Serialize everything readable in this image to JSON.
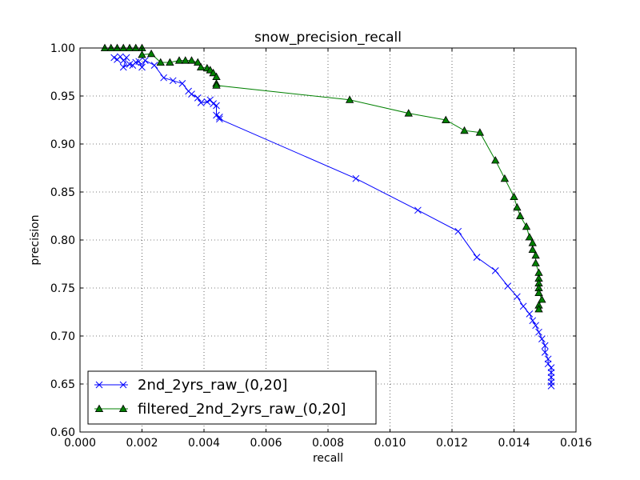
{
  "chart_data": {
    "type": "line",
    "title": "snow_precision_recall",
    "xlabel": "recall",
    "ylabel": "precision",
    "xlim": [
      0.0,
      0.016
    ],
    "ylim": [
      0.6,
      1.0
    ],
    "grid": true,
    "legend_position": "lower-left",
    "x_ticks": [
      "0.000",
      "0.002",
      "0.004",
      "0.006",
      "0.008",
      "0.010",
      "0.012",
      "0.014",
      "0.016"
    ],
    "y_ticks": [
      "0.60",
      "0.65",
      "0.70",
      "0.75",
      "0.80",
      "0.85",
      "0.90",
      "0.95",
      "1.00"
    ],
    "series": [
      {
        "name": "2nd_2yrs_raw_(0,20]",
        "color": "#0000ff",
        "marker": "x",
        "points": [
          [
            0.0011,
            0.99
          ],
          [
            0.0012,
            0.988
          ],
          [
            0.0013,
            0.991
          ],
          [
            0.0014,
            0.987
          ],
          [
            0.0015,
            0.99
          ],
          [
            0.0014,
            0.98
          ],
          [
            0.0016,
            0.983
          ],
          [
            0.0017,
            0.982
          ],
          [
            0.0018,
            0.985
          ],
          [
            0.0019,
            0.986
          ],
          [
            0.002,
            0.98
          ],
          [
            0.0021,
            0.987
          ],
          [
            0.0024,
            0.982
          ],
          [
            0.0027,
            0.969
          ],
          [
            0.003,
            0.966
          ],
          [
            0.0033,
            0.963
          ],
          [
            0.0035,
            0.955
          ],
          [
            0.0036,
            0.952
          ],
          [
            0.0038,
            0.948
          ],
          [
            0.0039,
            0.943
          ],
          [
            0.0041,
            0.944
          ],
          [
            0.0042,
            0.946
          ],
          [
            0.0043,
            0.942
          ],
          [
            0.0044,
            0.94
          ],
          [
            0.0044,
            0.93
          ],
          [
            0.0045,
            0.928
          ],
          [
            0.0045,
            0.926
          ],
          [
            0.0089,
            0.864
          ],
          [
            0.0109,
            0.831
          ],
          [
            0.0122,
            0.809
          ],
          [
            0.0128,
            0.782
          ],
          [
            0.0134,
            0.768
          ],
          [
            0.0138,
            0.752
          ],
          [
            0.0141,
            0.741
          ],
          [
            0.0143,
            0.731
          ],
          [
            0.0145,
            0.723
          ],
          [
            0.0146,
            0.716
          ],
          [
            0.0147,
            0.711
          ],
          [
            0.0148,
            0.704
          ],
          [
            0.0149,
            0.697
          ],
          [
            0.015,
            0.69
          ],
          [
            0.015,
            0.683
          ],
          [
            0.0151,
            0.676
          ],
          [
            0.0151,
            0.671
          ],
          [
            0.0152,
            0.667
          ],
          [
            0.0152,
            0.662
          ],
          [
            0.0152,
            0.657
          ],
          [
            0.0152,
            0.652
          ],
          [
            0.0152,
            0.648
          ]
        ]
      },
      {
        "name": "filtered_2nd_2yrs_raw_(0,20]",
        "color": "#008000",
        "marker": "triangle",
        "points": [
          [
            0.0008,
            1.0
          ],
          [
            0.001,
            1.0
          ],
          [
            0.0012,
            1.0
          ],
          [
            0.0014,
            1.0
          ],
          [
            0.0016,
            1.0
          ],
          [
            0.0018,
            1.0
          ],
          [
            0.002,
            1.0
          ],
          [
            0.002,
            0.993
          ],
          [
            0.0023,
            0.994
          ],
          [
            0.0026,
            0.985
          ],
          [
            0.0029,
            0.985
          ],
          [
            0.0032,
            0.987
          ],
          [
            0.0034,
            0.987
          ],
          [
            0.0036,
            0.987
          ],
          [
            0.0038,
            0.985
          ],
          [
            0.0039,
            0.98
          ],
          [
            0.0041,
            0.979
          ],
          [
            0.0042,
            0.977
          ],
          [
            0.0043,
            0.974
          ],
          [
            0.0044,
            0.97
          ],
          [
            0.0044,
            0.963
          ],
          [
            0.0044,
            0.961
          ],
          [
            0.0087,
            0.946
          ],
          [
            0.0106,
            0.932
          ],
          [
            0.0118,
            0.925
          ],
          [
            0.0124,
            0.914
          ],
          [
            0.0129,
            0.912
          ],
          [
            0.0134,
            0.883
          ],
          [
            0.0137,
            0.864
          ],
          [
            0.014,
            0.845
          ],
          [
            0.0141,
            0.834
          ],
          [
            0.0142,
            0.825
          ],
          [
            0.0144,
            0.814
          ],
          [
            0.0145,
            0.803
          ],
          [
            0.0146,
            0.797
          ],
          [
            0.0146,
            0.79
          ],
          [
            0.0147,
            0.784
          ],
          [
            0.0147,
            0.776
          ],
          [
            0.0148,
            0.766
          ],
          [
            0.0148,
            0.76
          ],
          [
            0.0148,
            0.755
          ],
          [
            0.0148,
            0.75
          ],
          [
            0.0148,
            0.745
          ],
          [
            0.0149,
            0.738
          ],
          [
            0.0148,
            0.732
          ],
          [
            0.0148,
            0.728
          ]
        ]
      }
    ]
  }
}
